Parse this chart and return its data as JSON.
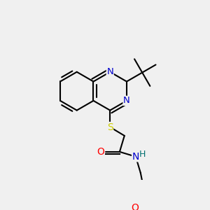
{
  "bg_color": "#f0f0f0",
  "bond_color": "#000000",
  "bond_width": 1.5,
  "atom_colors": {
    "N": "#0000cc",
    "O": "#ff0000",
    "S": "#cccc00",
    "H": "#007070",
    "C": "#000000"
  },
  "font_size": 9.5,
  "fig_size": [
    3.0,
    3.0
  ],
  "dpi": 100,
  "xlim": [
    0,
    300
  ],
  "ylim": [
    0,
    300
  ]
}
